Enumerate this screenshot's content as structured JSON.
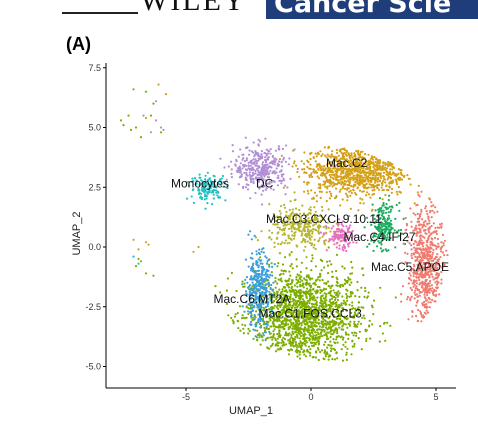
{
  "header": {
    "publisher": "WILEY",
    "journal_fragment": "Cancer Scie"
  },
  "panel_label": "(A)",
  "colors": {
    "Mac.C1.FOS.CCL3": "#7cae00",
    "Mac.C2": "#d4a017",
    "Mac.C3.CXCL9.10.11": "#b5b52e",
    "Mac.C4.IFI27": "#1aab5e",
    "Mac.C5.APOE": "#ef7b70",
    "Mac.C6.MT2A": "#3a9fd9",
    "Monocytes": "#26bfc2",
    "DC": "#b28fd4",
    "pink": "#e86fc0"
  },
  "chart_data": {
    "type": "scatter",
    "title": "",
    "xlabel": "UMAP_1",
    "ylabel": "UMAP_2",
    "xlim": [
      -8.2,
      5.8
    ],
    "ylim": [
      -5.9,
      7.7
    ],
    "x_ticks": [
      "-5",
      "0",
      "5"
    ],
    "x_tick_values": [
      -5,
      0,
      5
    ],
    "y_ticks": [
      "7.5",
      "5.0",
      "2.5",
      "0.0",
      "-2.5",
      "-5.0"
    ],
    "y_tick_values": [
      7.5,
      5.0,
      2.5,
      0.0,
      -2.5,
      -5.0
    ],
    "clusters": [
      {
        "name": "Mac.C1.FOS.CCL3",
        "label": "Mac.C1.FOS.CCL3",
        "label_x": -2.1,
        "label_y": -2.95,
        "center": [
          -0.3,
          -2.9
        ],
        "spread": [
          2.6,
          2.2
        ],
        "n": 1600
      },
      {
        "name": "Mac.C2",
        "label": "Mac.C2",
        "label_x": 0.6,
        "label_y": 3.35,
        "center": [
          1.8,
          3.2
        ],
        "spread": [
          2.3,
          1.2
        ],
        "n": 900
      },
      {
        "name": "Mac.C3.CXCL9.10.11",
        "label": "Mac.C3.CXCL9.10.11",
        "label_x": -1.8,
        "label_y": 1.0,
        "center": [
          -0.4,
          0.8
        ],
        "spread": [
          1.4,
          1.0
        ],
        "n": 300
      },
      {
        "name": "Mac.C4.IFI27",
        "label": "Mac.C4.IFI27",
        "label_x": 1.3,
        "label_y": 0.25,
        "center": [
          2.9,
          0.9
        ],
        "spread": [
          0.6,
          1.0
        ],
        "n": 200
      },
      {
        "name": "Mac.C5.APOE",
        "label": "Mac.C5.APOE",
        "label_x": 2.4,
        "label_y": -1.0,
        "center": [
          4.6,
          -0.8
        ],
        "spread": [
          0.8,
          2.8
        ],
        "n": 600
      },
      {
        "name": "Mac.C6.MT2A",
        "label": "Mac.C6.MT2A",
        "label_x": -3.9,
        "label_y": -2.35,
        "center": [
          -2.1,
          -1.8
        ],
        "spread": [
          0.6,
          1.8
        ],
        "n": 350
      },
      {
        "name": "Monocytes",
        "label": "Monocytes",
        "label_x": -5.6,
        "label_y": 2.5,
        "center": [
          -4.1,
          2.5
        ],
        "spread": [
          0.8,
          0.6
        ],
        "n": 150
      },
      {
        "name": "DC",
        "label": "DC",
        "label_x": -2.2,
        "label_y": 2.5,
        "center": [
          -2.0,
          3.3
        ],
        "spread": [
          1.2,
          1.0
        ],
        "n": 350
      },
      {
        "name": "pink",
        "label": "",
        "label_x": 0,
        "label_y": 0,
        "center": [
          1.2,
          0.4
        ],
        "spread": [
          0.6,
          0.6
        ],
        "n": 120
      }
    ],
    "outliers": [
      {
        "cluster": "Mac.C1.FOS.CCL3",
        "points": [
          [
            -7.1,
            6.6
          ],
          [
            -6.6,
            6.5
          ],
          [
            -7.3,
            5.5
          ],
          [
            -7.5,
            5.1
          ],
          [
            -7.0,
            5.0
          ],
          [
            -6.4,
            5.5
          ],
          [
            -6.0,
            4.8
          ],
          [
            -6.8,
            4.6
          ],
          [
            -6.3,
            6.0
          ],
          [
            -7.6,
            5.3
          ],
          [
            -7.2,
            4.9
          ],
          [
            -6.9,
            -0.5
          ],
          [
            -6.6,
            -1.1
          ],
          [
            -7.0,
            -0.8
          ],
          [
            -6.3,
            -1.2
          ],
          [
            -6.8,
            -0.6
          ]
        ]
      },
      {
        "cluster": "Mac.C2",
        "points": [
          [
            -6.1,
            6.8
          ],
          [
            -5.8,
            6.4
          ],
          [
            -6.5,
            0.1
          ],
          [
            -6.9,
            -0.1
          ],
          [
            -4.5,
            0.0
          ],
          [
            -4.7,
            -0.2
          ],
          [
            -6.6,
            5.4
          ],
          [
            -7.1,
            0.3
          ],
          [
            -6.6,
            0.2
          ]
        ]
      },
      {
        "cluster": "DC",
        "points": [
          [
            -6.7,
            5.5
          ],
          [
            -6.2,
            5.3
          ],
          [
            -6.0,
            5.0
          ],
          [
            -5.9,
            4.9
          ],
          [
            -6.4,
            4.8
          ],
          [
            -6.2,
            6.1
          ]
        ]
      },
      {
        "cluster": "Monocytes",
        "points": [
          [
            -6.9,
            -0.7
          ],
          [
            -7.1,
            -0.4
          ]
        ]
      }
    ]
  }
}
